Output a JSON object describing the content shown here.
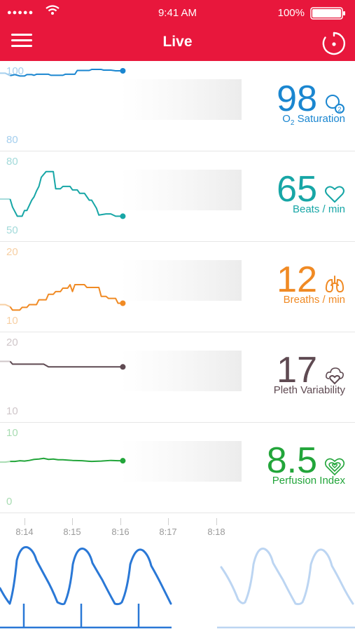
{
  "status": {
    "signal": "●●●●●",
    "time": "9:41 AM",
    "battery": "100%"
  },
  "nav": {
    "title": "Live"
  },
  "panels": [
    {
      "id": "spo2",
      "scale_top": "100",
      "scale_bottom": "80",
      "value": "98",
      "label_main": "O",
      "label_sub": "2",
      "label_rest": " Saturation",
      "color": "#1a86d0",
      "light": "#a5cfee",
      "icon": "o2-icon",
      "series": [
        [
          8.1,
          99.3
        ],
        [
          8.11,
          98.6
        ],
        [
          8.12,
          98.9
        ],
        [
          8.13,
          98.5
        ],
        [
          8.14,
          98.5
        ],
        [
          8.145,
          98.9
        ],
        [
          8.155,
          98.9
        ],
        [
          8.16,
          98.7
        ],
        [
          8.165,
          99.0
        ],
        [
          8.19,
          99.0
        ],
        [
          8.195,
          98.7
        ],
        [
          8.22,
          98.7
        ],
        [
          8.225,
          99.0
        ],
        [
          8.245,
          99.0
        ],
        [
          8.25,
          100.1
        ],
        [
          8.275,
          100.1
        ],
        [
          8.28,
          100.4
        ],
        [
          8.3,
          100.4
        ],
        [
          8.305,
          100.2
        ],
        [
          8.32,
          100.2
        ],
        [
          8.33,
          100.0
        ],
        [
          8.345,
          100.0
        ]
      ]
    },
    {
      "id": "pr",
      "scale_top": "80",
      "scale_bottom": "50",
      "value": "65",
      "label_main": "Beats / min",
      "label_sub": "",
      "label_rest": "",
      "color": "#17a6a6",
      "light": "#a3dada",
      "icon": "heart-icon",
      "series": [
        [
          8.1,
          63.5
        ],
        [
          8.11,
          63.5
        ],
        [
          8.115,
          60.0
        ],
        [
          8.125,
          56.0
        ],
        [
          8.135,
          56.0
        ],
        [
          8.14,
          58.5
        ],
        [
          8.145,
          58.5
        ],
        [
          8.155,
          63.0
        ],
        [
          8.16,
          64.5
        ],
        [
          8.165,
          67.0
        ],
        [
          8.17,
          69.0
        ],
        [
          8.175,
          73.0
        ],
        [
          8.185,
          75.5
        ],
        [
          8.2,
          75.5
        ],
        [
          8.205,
          68.0
        ],
        [
          8.215,
          68.0
        ],
        [
          8.22,
          69.0
        ],
        [
          8.235,
          69.0
        ],
        [
          8.24,
          67.5
        ],
        [
          8.25,
          67.5
        ],
        [
          8.255,
          66.0
        ],
        [
          8.265,
          66.0
        ],
        [
          8.27,
          64.5
        ],
        [
          8.275,
          63.0
        ],
        [
          8.28,
          63.0
        ],
        [
          8.29,
          59.5
        ],
        [
          8.295,
          56.5
        ],
        [
          8.31,
          57.0
        ],
        [
          8.32,
          57.0
        ],
        [
          8.33,
          56.0
        ],
        [
          8.345,
          56.0
        ]
      ]
    },
    {
      "id": "rr",
      "scale_top": "20",
      "scale_bottom": "10",
      "value": "12",
      "label_main": "Breaths / min",
      "label_sub": "",
      "label_rest": "",
      "color": "#f08a24",
      "light": "#f7cfa3",
      "icon": "lungs-icon",
      "series": [
        [
          8.1,
          12.3
        ],
        [
          8.11,
          12.0
        ],
        [
          8.115,
          11.5
        ],
        [
          8.13,
          11.5
        ],
        [
          8.135,
          11.9
        ],
        [
          8.145,
          11.9
        ],
        [
          8.15,
          12.3
        ],
        [
          8.165,
          12.3
        ],
        [
          8.17,
          13.0
        ],
        [
          8.185,
          13.0
        ],
        [
          8.19,
          13.8
        ],
        [
          8.2,
          13.8
        ],
        [
          8.205,
          14.2
        ],
        [
          8.215,
          14.2
        ],
        [
          8.22,
          14.7
        ],
        [
          8.23,
          14.7
        ],
        [
          8.235,
          15.2
        ],
        [
          8.24,
          14.2
        ],
        [
          8.245,
          15.2
        ],
        [
          8.265,
          15.2
        ],
        [
          8.27,
          14.8
        ],
        [
          8.295,
          14.8
        ],
        [
          8.3,
          13.5
        ],
        [
          8.31,
          13.5
        ],
        [
          8.315,
          13.2
        ],
        [
          8.33,
          13.2
        ],
        [
          8.335,
          12.5
        ],
        [
          8.345,
          12.5
        ]
      ]
    },
    {
      "id": "pvi",
      "scale_top": "20",
      "scale_bottom": "10",
      "value": "17",
      "label_main": "Pleth Variability",
      "label_sub": "",
      "label_rest": "",
      "color": "#5f4a52",
      "light": "#cfc6c9",
      "icon": "pleth-icon",
      "series": [
        [
          8.1,
          17.2
        ],
        [
          8.11,
          17.2
        ],
        [
          8.115,
          16.8
        ],
        [
          8.18,
          16.8
        ],
        [
          8.19,
          16.4
        ],
        [
          8.345,
          16.4
        ]
      ]
    },
    {
      "id": "pi",
      "scale_top": "10",
      "scale_bottom": "0",
      "value": "8.5",
      "label_main": "Perfusion Index",
      "label_sub": "",
      "label_rest": "",
      "color": "#22a53a",
      "light": "#a8dcb2",
      "icon": "perfusion-icon",
      "series": [
        [
          8.1,
          5.7
        ],
        [
          8.11,
          5.8
        ],
        [
          8.12,
          5.8
        ],
        [
          8.13,
          5.9
        ],
        [
          8.14,
          5.85
        ],
        [
          8.15,
          5.95
        ],
        [
          8.16,
          6.1
        ],
        [
          8.17,
          6.15
        ],
        [
          8.18,
          6.25
        ],
        [
          8.19,
          6.1
        ],
        [
          8.2,
          6.15
        ],
        [
          8.21,
          6.05
        ],
        [
          8.22,
          6.05
        ],
        [
          8.23,
          6.0
        ],
        [
          8.24,
          5.95
        ],
        [
          8.26,
          5.9
        ],
        [
          8.28,
          5.8
        ],
        [
          8.3,
          5.85
        ],
        [
          8.32,
          5.95
        ],
        [
          8.335,
          5.9
        ],
        [
          8.345,
          5.9
        ]
      ]
    }
  ],
  "time_axis": {
    "labels": [
      "8:14",
      "8:15",
      "8:16",
      "8:17",
      "8:18"
    ]
  },
  "colors": {
    "brand": "#e8173c",
    "waveform": "#2a78d6",
    "waveform_light": "#bcd5f2"
  }
}
